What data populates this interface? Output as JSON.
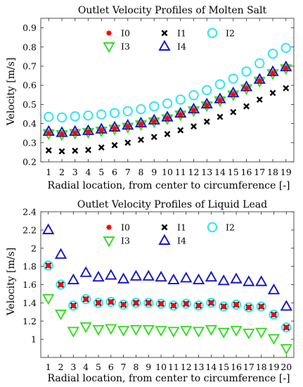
{
  "colors": {
    "I0": "#ff0000",
    "I1": "#000000",
    "I2": "#33e6f2",
    "I3": "#33dd22",
    "I4": "#1414c8"
  },
  "chart_data": [
    {
      "type": "scatter",
      "title": "Outlet Velocity Profiles of Molten Salt",
      "xlabel": "Radial location, from center to circumference [-]",
      "ylabel": "Velocity [m/s]",
      "xlim": [
        0.4,
        19.6
      ],
      "ylim": [
        0.2,
        0.95
      ],
      "xticks": [
        1,
        2,
        3,
        4,
        5,
        6,
        7,
        8,
        9,
        10,
        11,
        12,
        13,
        14,
        15,
        16,
        17,
        18,
        19
      ],
      "yticks": [
        0.2,
        0.3,
        0.4,
        0.5,
        0.6,
        0.7,
        0.8,
        0.9
      ],
      "legend_position": "top",
      "x": [
        1,
        2,
        3,
        4,
        5,
        6,
        7,
        8,
        9,
        10,
        11,
        12,
        13,
        14,
        15,
        16,
        17,
        18,
        19
      ],
      "series": [
        {
          "name": "I0",
          "marker": "asterisk",
          "values": [
            0.35,
            0.345,
            0.352,
            0.357,
            0.365,
            0.375,
            0.385,
            0.397,
            0.412,
            0.428,
            0.448,
            0.47,
            0.496,
            0.522,
            0.553,
            0.585,
            0.624,
            0.664,
            0.69
          ]
        },
        {
          "name": "I1",
          "marker": "x",
          "values": [
            0.26,
            0.255,
            0.258,
            0.262,
            0.275,
            0.287,
            0.3,
            0.315,
            0.33,
            0.345,
            0.365,
            0.385,
            0.41,
            0.435,
            0.46,
            0.49,
            0.525,
            0.56,
            0.585
          ]
        },
        {
          "name": "I2",
          "marker": "circle",
          "values": [
            0.435,
            0.432,
            0.438,
            0.442,
            0.448,
            0.455,
            0.465,
            0.475,
            0.49,
            0.505,
            0.525,
            0.548,
            0.575,
            0.605,
            0.635,
            0.672,
            0.715,
            0.765,
            0.795
          ]
        },
        {
          "name": "I3",
          "marker": "triangle-down",
          "values": [
            0.348,
            0.343,
            0.35,
            0.355,
            0.362,
            0.372,
            0.382,
            0.395,
            0.41,
            0.426,
            0.446,
            0.468,
            0.494,
            0.52,
            0.551,
            0.583,
            0.622,
            0.662,
            0.688
          ]
        },
        {
          "name": "I4",
          "marker": "triangle-up",
          "values": [
            0.358,
            0.352,
            0.358,
            0.362,
            0.37,
            0.38,
            0.39,
            0.402,
            0.417,
            0.433,
            0.453,
            0.475,
            0.501,
            0.528,
            0.559,
            0.591,
            0.63,
            0.67,
            0.695
          ]
        }
      ]
    },
    {
      "type": "scatter",
      "title": "Outlet Velocity Profiles of Liquid Lead",
      "xlabel": "Radial location, from center to circumference [-]",
      "ylabel": "Velocity [m/s]",
      "xlim": [
        0.4,
        20.6
      ],
      "ylim": [
        0.8,
        2.4
      ],
      "xticks": [
        1,
        2,
        3,
        4,
        5,
        6,
        7,
        8,
        9,
        10,
        11,
        12,
        13,
        14,
        15,
        16,
        17,
        18,
        19,
        20
      ],
      "yticks": [
        1,
        1.2,
        1.4,
        1.6,
        1.8,
        2,
        2.2,
        2.4
      ],
      "legend_position": "top",
      "x": [
        1,
        2,
        3,
        4,
        5,
        6,
        7,
        8,
        9,
        10,
        11,
        12,
        13,
        14,
        15,
        16,
        17,
        18,
        19,
        20
      ],
      "series": [
        {
          "name": "I0",
          "marker": "asterisk",
          "values": [
            1.81,
            1.6,
            1.37,
            1.44,
            1.4,
            1.41,
            1.38,
            1.4,
            1.4,
            1.39,
            1.37,
            1.39,
            1.37,
            1.4,
            1.36,
            1.38,
            1.35,
            1.36,
            1.27,
            1.13
          ]
        },
        {
          "name": "I1",
          "marker": "x",
          "values": [
            1.81,
            1.6,
            1.37,
            1.44,
            1.4,
            1.41,
            1.38,
            1.4,
            1.4,
            1.39,
            1.37,
            1.39,
            1.37,
            1.4,
            1.36,
            1.38,
            1.35,
            1.36,
            1.27,
            1.13
          ]
        },
        {
          "name": "I2",
          "marker": "circle",
          "values": [
            1.81,
            1.6,
            1.37,
            1.44,
            1.4,
            1.41,
            1.38,
            1.4,
            1.4,
            1.39,
            1.37,
            1.39,
            1.37,
            1.4,
            1.36,
            1.38,
            1.35,
            1.36,
            1.27,
            1.13
          ]
        },
        {
          "name": "I3",
          "marker": "triangle-down",
          "values": [
            1.45,
            1.28,
            1.09,
            1.14,
            1.11,
            1.12,
            1.1,
            1.11,
            1.11,
            1.1,
            1.09,
            1.1,
            1.09,
            1.11,
            1.08,
            1.1,
            1.07,
            1.08,
            1.01,
            0.9
          ]
        },
        {
          "name": "I4",
          "marker": "triangle-up",
          "values": [
            2.2,
            1.93,
            1.65,
            1.73,
            1.68,
            1.7,
            1.66,
            1.69,
            1.69,
            1.68,
            1.65,
            1.67,
            1.65,
            1.68,
            1.64,
            1.66,
            1.63,
            1.63,
            1.54,
            1.36
          ]
        }
      ]
    }
  ]
}
